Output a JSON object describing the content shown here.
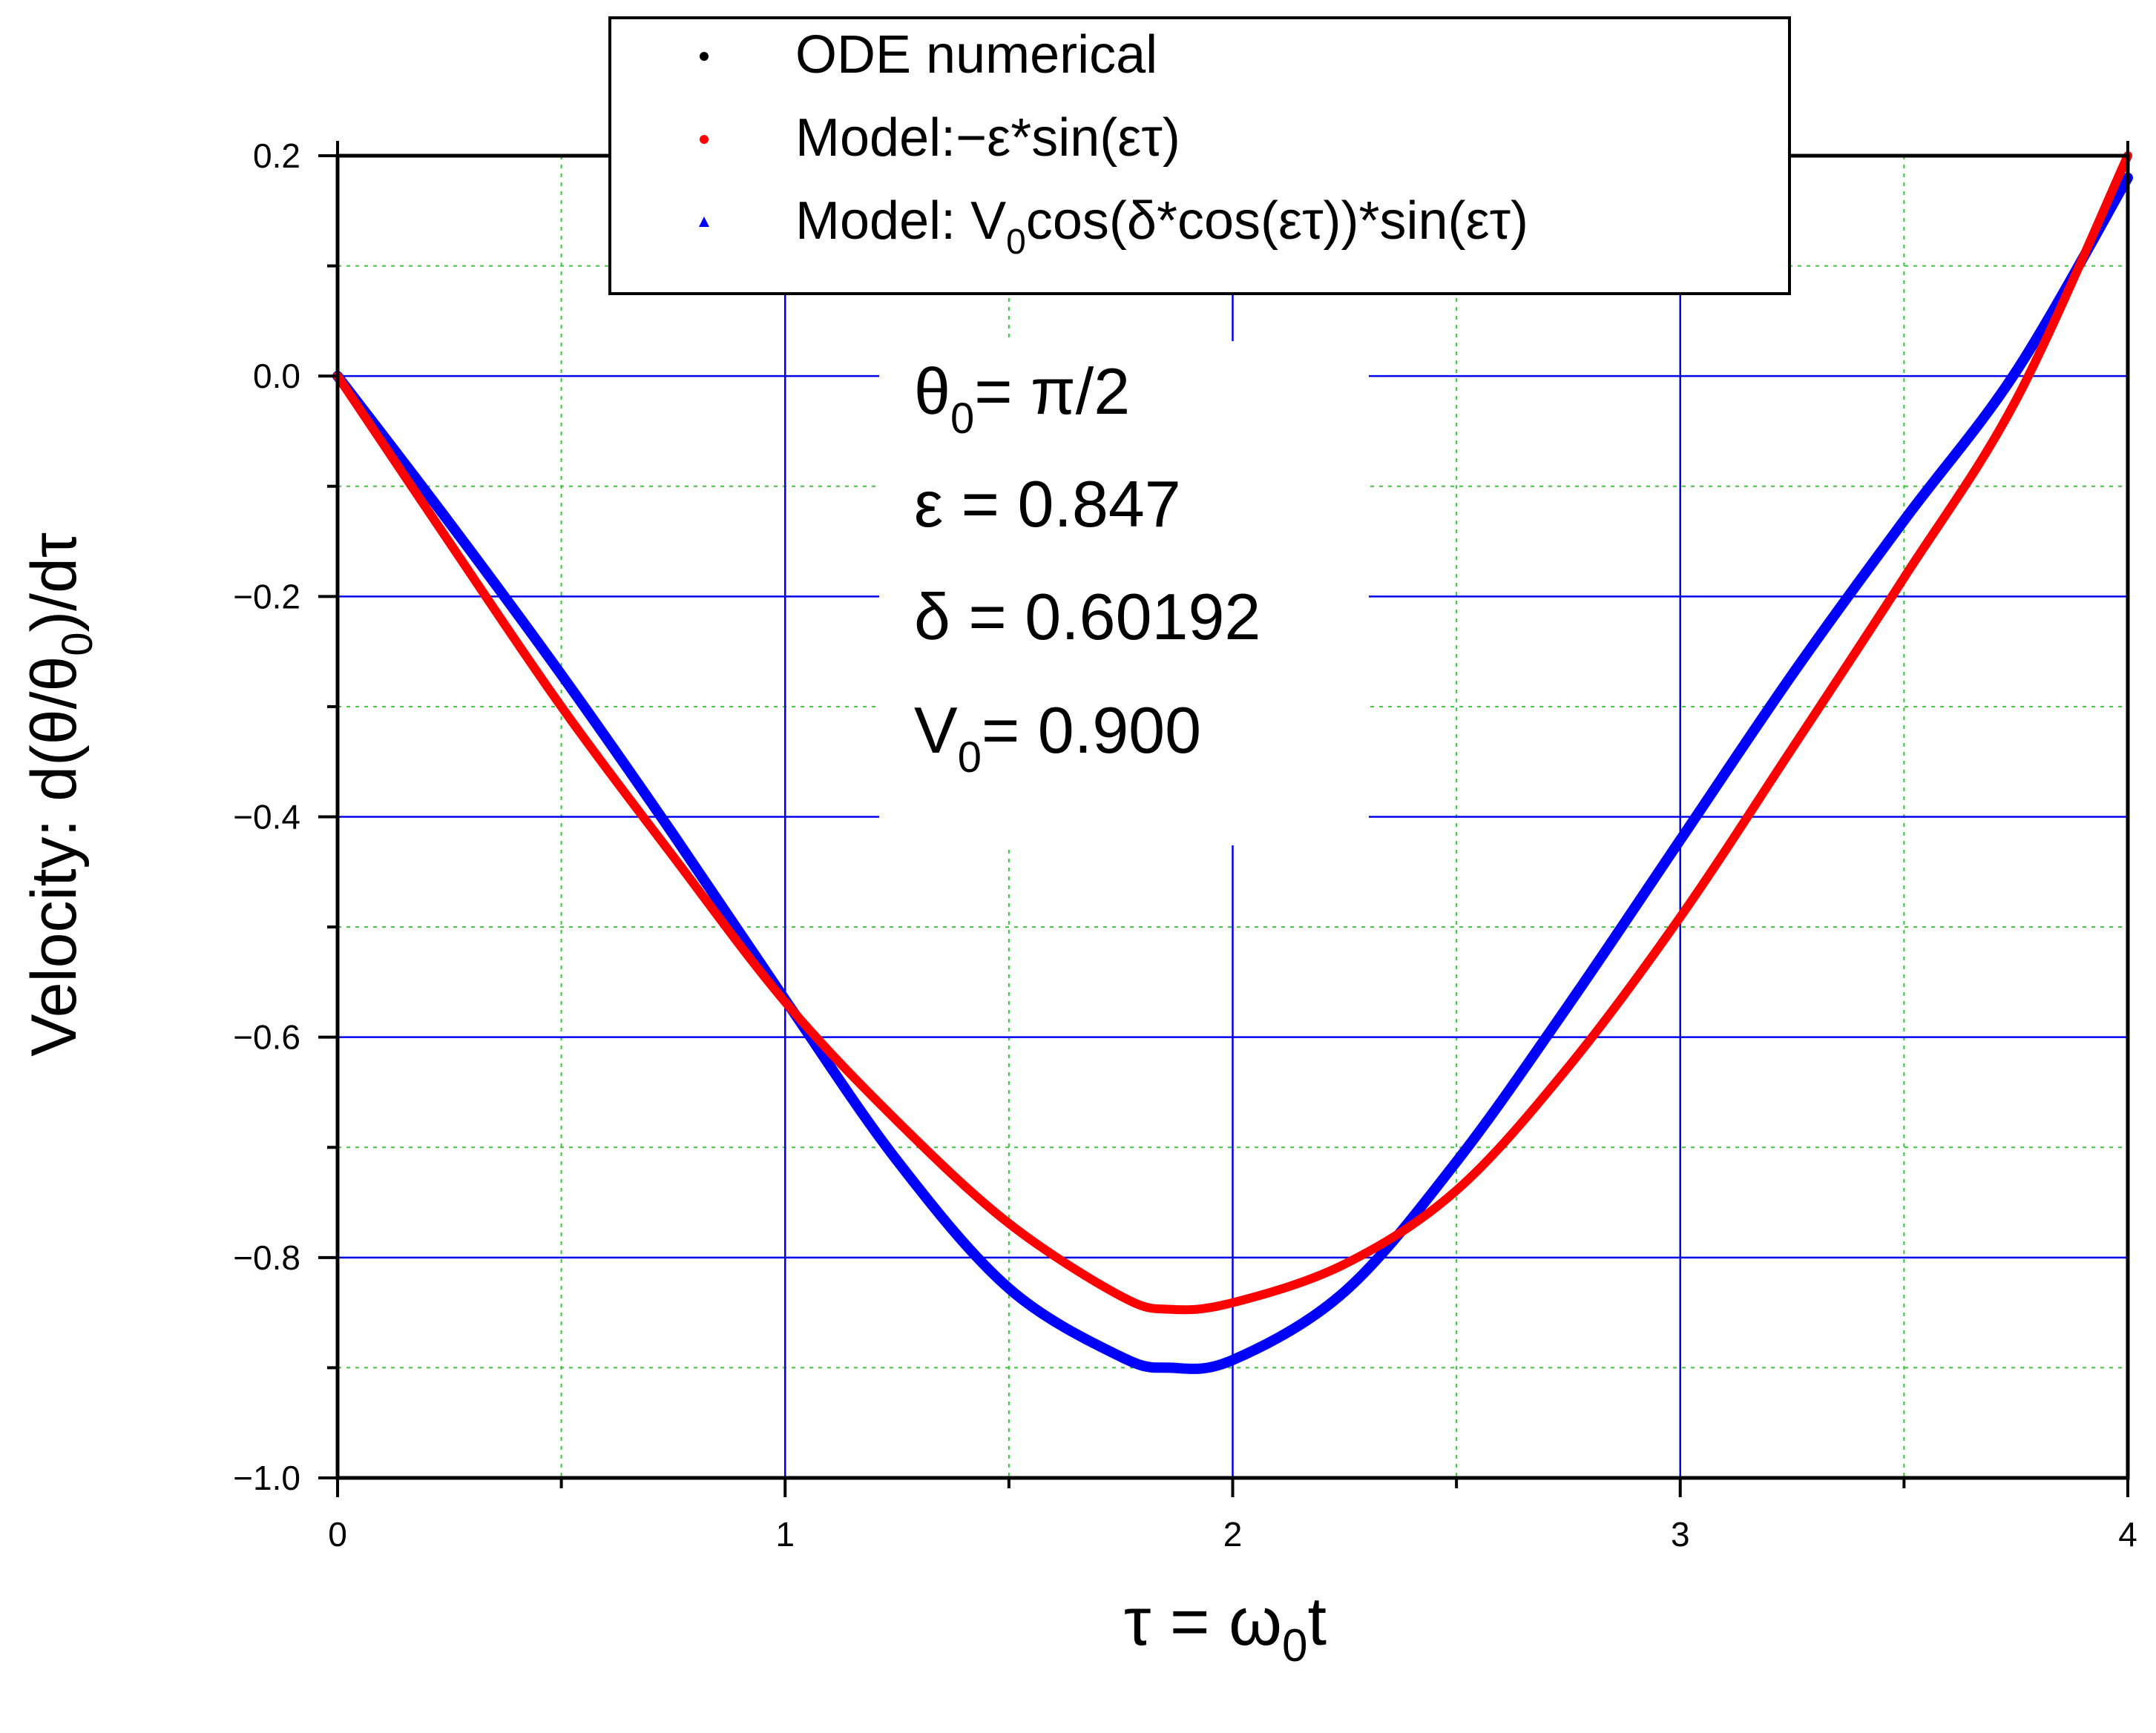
{
  "chart_data": {
    "type": "line",
    "xlim": [
      0,
      4
    ],
    "ylim": [
      -1.0,
      0.2
    ],
    "x_ticks": [
      0,
      1,
      2,
      3,
      4
    ],
    "x_tick_labels": [
      "0",
      "1",
      "2",
      "3",
      "4"
    ],
    "y_ticks": [
      0.2,
      0.0,
      -0.2,
      -0.4,
      -0.6,
      -0.8,
      -1.0
    ],
    "y_tick_labels": [
      "0.2",
      "0.0",
      "−0.2",
      "−0.4",
      "−0.6",
      "−0.8",
      "−1.0"
    ],
    "xlabel": {
      "pre": "τ = ω",
      "sub": "0",
      "post": "t"
    },
    "ylabel": {
      "pre": "Velocity: d(θ/θ",
      "sub": "0",
      "post": ")/dτ"
    },
    "grid": {
      "major": true,
      "minor": true,
      "major_color": "#0000ee",
      "minor_color": "#33cc33"
    },
    "legend_position": "top-center",
    "legend": [
      {
        "marker": "dot",
        "color": "#000000",
        "text": [
          {
            "t": "ODE  numerical"
          }
        ]
      },
      {
        "marker": "dot",
        "color": "#ff0000",
        "text": [
          {
            "t": "Model:−ε*sin(ετ)"
          }
        ]
      },
      {
        "marker": "triangle",
        "color": "#0000ff",
        "text": [
          {
            "t": "Model: V"
          },
          {
            "t": "0",
            "sub": true
          },
          {
            "t": "cos(δ*cos(ετ))*sin(ετ)"
          }
        ]
      }
    ],
    "annotations": [
      {
        "pre": "θ",
        "sub": "0",
        "post": "= π/2"
      },
      {
        "pre": "ε = 0.847",
        "sub": "",
        "post": ""
      },
      {
        "pre": "δ = 0.60192",
        "sub": "",
        "post": ""
      },
      {
        "pre": "V",
        "sub": "0",
        "post": "= 0.900"
      }
    ],
    "series": [
      {
        "color": "#0000ff",
        "stroke": 14,
        "x": [
          0,
          0.25,
          0.5,
          0.75,
          1.0,
          1.25,
          1.5,
          1.75,
          1.86,
          2.0,
          2.25,
          2.5,
          2.75,
          3.0,
          3.25,
          3.5,
          3.75,
          4.0
        ],
        "y": [
          0,
          -0.133,
          -0.271,
          -0.416,
          -0.566,
          -0.712,
          -0.828,
          -0.89,
          -0.9,
          -0.893,
          -0.831,
          -0.713,
          -0.571,
          -0.421,
          -0.271,
          -0.131,
          0.004,
          0.18
        ]
      },
      {
        "color": "#ff0000",
        "stroke": 12,
        "x": [
          0,
          0.25,
          0.5,
          0.75,
          1.0,
          1.25,
          1.5,
          1.75,
          1.86,
          2.0,
          2.25,
          2.5,
          2.75,
          3.0,
          3.25,
          3.5,
          3.75,
          4.0
        ],
        "y": [
          0,
          -0.151,
          -0.3,
          -0.436,
          -0.568,
          -0.676,
          -0.769,
          -0.835,
          -0.847,
          -0.841,
          -0.806,
          -0.739,
          -0.627,
          -0.491,
          -0.338,
          -0.183,
          -0.022,
          0.2
        ]
      }
    ]
  }
}
